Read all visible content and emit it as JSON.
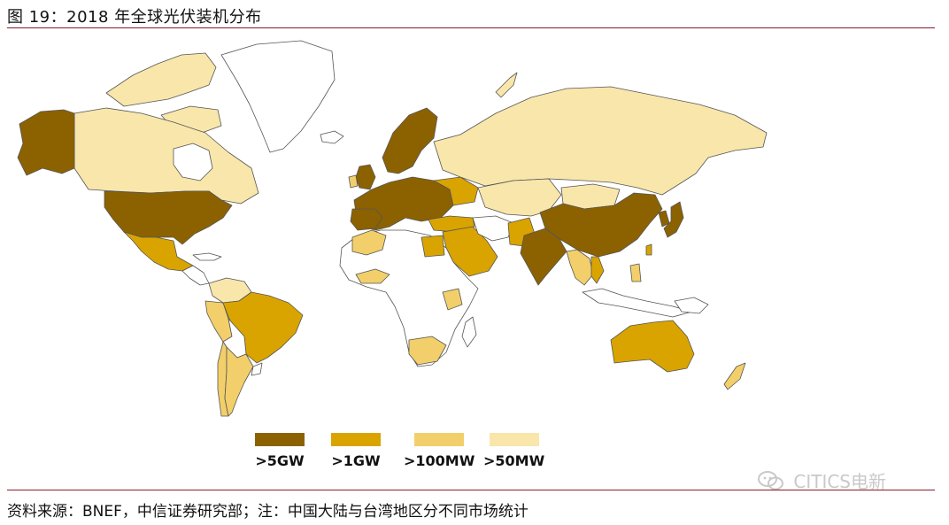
{
  "figure": {
    "title": "图 19：2018 年全球光伏装机分布"
  },
  "legend": [
    {
      "label": ">5GW",
      "color": "#8c6200"
    },
    {
      "label": ">1GW",
      "color": "#d9a400"
    },
    {
      "label": ">100MW",
      "color": "#f2cf6a"
    },
    {
      "label": ">50MW",
      "color": "#f8e6ab"
    }
  ],
  "colors": {
    "rule": "#8b1a2b",
    "unclassified": "#ffffff",
    "border": "#555555"
  },
  "source": "资料来源：BNEF，中信证券研究部；注：中国大陆与台湾地区分不同市场统计",
  "watermark": {
    "text": "CITICS电新",
    "icon": "wechat-icon"
  }
}
